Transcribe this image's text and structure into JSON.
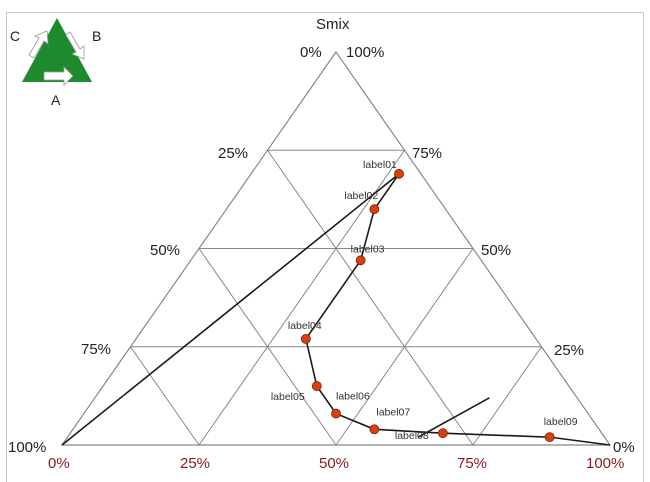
{
  "chart_data": {
    "type": "ternary",
    "title": "Smix",
    "vertex_labels": [
      "0%",
      "100%"
    ],
    "left_ticks": [
      "25%",
      "50%",
      "75%",
      "100%"
    ],
    "right_ticks": [
      "75%",
      "50%",
      "25%",
      "0%"
    ],
    "bottom_ticks": [
      "0%",
      "25%",
      "50%",
      "75%",
      "100%"
    ],
    "logo_labels": {
      "a": "A",
      "b": "B",
      "c": "C"
    },
    "points": [
      {
        "label": "label01",
        "a": 0.69,
        "b": 0.04,
        "c": 0.27
      },
      {
        "label": "label02",
        "a": 0.6,
        "b": 0.13,
        "c": 0.27
      },
      {
        "label": "label03",
        "a": 0.47,
        "b": 0.22,
        "c": 0.31
      },
      {
        "label": "label04",
        "a": 0.27,
        "b": 0.42,
        "c": 0.31
      },
      {
        "label": "label05",
        "a": 0.15,
        "b": 0.46,
        "c": 0.39
      },
      {
        "label": "label06",
        "a": 0.08,
        "b": 0.46,
        "c": 0.46
      },
      {
        "label": "label07",
        "a": 0.04,
        "b": 0.41,
        "c": 0.55
      },
      {
        "label": "label08",
        "a": 0.03,
        "b": 0.29,
        "c": 0.68
      },
      {
        "label": "label09",
        "a": 0.02,
        "b": 0.1,
        "c": 0.88
      }
    ],
    "curve_line_color": "#1a1a1a",
    "point_color": "#d9400e",
    "grid_color": "#888888",
    "logo_color": "#1e8a2e",
    "bottom_tick_color": "#8b1a1a"
  }
}
